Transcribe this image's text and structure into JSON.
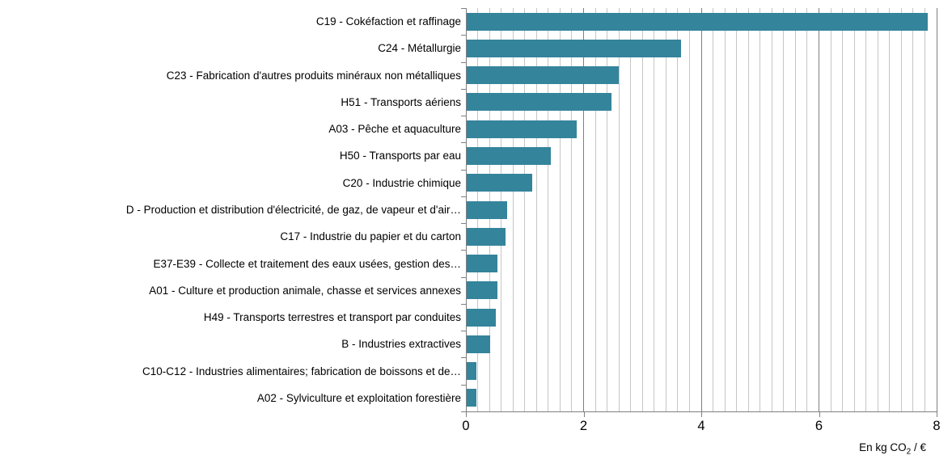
{
  "chart_data": {
    "type": "bar",
    "orientation": "horizontal",
    "title": "",
    "xlabel": "En kg CO₂ / €",
    "xlabel_parts": {
      "prefix": "En kg CO",
      "sub": "2",
      "suffix": " / €"
    },
    "ylabel": "",
    "xlim": [
      0,
      8
    ],
    "xticks": [
      0,
      2,
      4,
      6,
      8
    ],
    "xtick_labels": [
      "0",
      "2",
      "4",
      "6",
      "8"
    ],
    "minor_tick_step": 0.2,
    "major_tick_step": 2,
    "grid": true,
    "legend": false,
    "categories": [
      "C19 - Cokéfaction et raffinage",
      "C24 - Métallurgie",
      "C23 - Fabrication d'autres produits minéraux non métalliques",
      "H51 - Transports aériens",
      "A03 - Pêche et aquaculture",
      "H50 - Transports par eau",
      "C20 - Industrie chimique",
      "D - Production et distribution d'électricité, de gaz, de vapeur et d'air…",
      "C17 - Industrie du papier et du carton",
      "E37-E39 - Collecte et traitement des eaux usées, gestion des…",
      "A01 - Culture et production animale, chasse et services annexes",
      "H49 - Transports terrestres et transport par conduites",
      "B - Industries extractives",
      "C10-C12 - Industries alimentaires; fabrication de boissons et de…",
      "A02 - Sylviculture et exploitation forestière"
    ],
    "values": [
      7.85,
      3.65,
      2.6,
      2.48,
      1.88,
      1.45,
      1.13,
      0.7,
      0.67,
      0.54,
      0.53,
      0.51,
      0.41,
      0.18,
      0.18
    ],
    "colors": {
      "bar": "#34849B",
      "grid_minor": "#C6C6C6",
      "grid_major": "#7F7F7F",
      "axis": "#808080",
      "text": "#000000",
      "background": "#FFFFFF"
    }
  }
}
